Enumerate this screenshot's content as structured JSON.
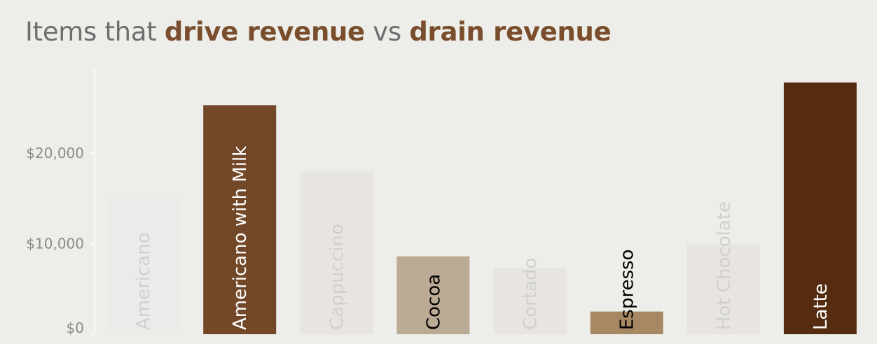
{
  "title": {
    "part1": "Items that ",
    "part2": "drive revenue",
    "part3": " vs ",
    "part4": "drain revenue"
  },
  "colors": {
    "background": "#edede9",
    "title_text": "#6f6f6f",
    "title_highlight": "#7a4e2d",
    "axis_line": "#ffffff",
    "tick_text": "#8a8a8a"
  },
  "chart_data": {
    "type": "bar",
    "title": "Items that drive revenue vs drain revenue",
    "xlabel": "",
    "ylabel": "",
    "ylim": [
      0,
      28000
    ],
    "yticks": [
      0,
      10000,
      20000
    ],
    "ytick_labels": [
      "$0",
      "$10,000",
      "$20,000"
    ],
    "grid": false,
    "categories": [
      "Americano",
      "Americano with Milk",
      "Cappuccino",
      "Cocoa",
      "Cortado",
      "Espresso",
      "Hot Chocolate",
      "Latte"
    ],
    "values": [
      15000,
      25300,
      18000,
      8600,
      7300,
      2500,
      10000,
      27800
    ],
    "bar_colors": [
      "#ebebe9",
      "#734828",
      "#e8e5e1",
      "#bcab94",
      "#e8e5e1",
      "#a68963",
      "#e8e5e1",
      "#552c0f"
    ],
    "label_colors": [
      "#d0d0d0",
      "#ffffff",
      "#d0d0d0",
      "#000000",
      "#d0d0d0",
      "#000000",
      "#d0d0d0",
      "#ffffff"
    ]
  }
}
